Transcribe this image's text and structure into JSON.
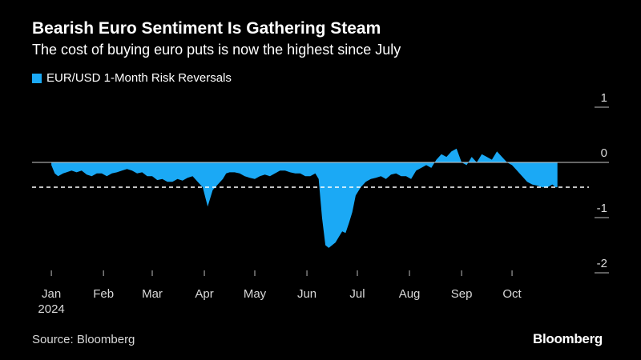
{
  "header": {
    "title": "Bearish Euro Sentiment Is Gathering Steam",
    "subtitle": "The cost of buying euro puts is now the highest since July"
  },
  "footer": {
    "source": "Source: Bloomberg",
    "brand": "Bloomberg"
  },
  "colors": {
    "background": "#000000",
    "series": "#1ba9f5",
    "zero_line": "#cccccc",
    "reference_line": "#ffffff"
  },
  "chart_data": {
    "type": "area",
    "title": "Bearish Euro Sentiment Is Gathering Steam",
    "subtitle": "The cost of buying euro puts is now the highest since July",
    "series_name": "EUR/USD 1-Month Risk Reversals",
    "legend_position": "top-left",
    "xlabel": "",
    "ylabel": "",
    "y_axis_side": "right",
    "ylim": [
      -2.2,
      1.2
    ],
    "yticks": [
      1,
      0,
      -1,
      -2
    ],
    "reference_line": -0.45,
    "x_range_days": [
      0,
      305
    ],
    "month_ticks": [
      {
        "label": "Jan",
        "day": 1
      },
      {
        "label": "Feb",
        "day": 32
      },
      {
        "label": "Mar",
        "day": 61
      },
      {
        "label": "Apr",
        "day": 92
      },
      {
        "label": "May",
        "day": 122
      },
      {
        "label": "Jun",
        "day": 153
      },
      {
        "label": "Jul",
        "day": 183
      },
      {
        "label": "Aug",
        "day": 214
      },
      {
        "label": "Sep",
        "day": 245
      },
      {
        "label": "Oct",
        "day": 275
      }
    ],
    "year_label": "2024",
    "x": [
      1,
      3,
      5,
      8,
      10,
      13,
      16,
      19,
      22,
      25,
      28,
      31,
      34,
      37,
      40,
      43,
      46,
      49,
      52,
      55,
      58,
      61,
      64,
      67,
      70,
      73,
      76,
      79,
      82,
      85,
      88,
      91,
      94,
      97,
      100,
      103,
      105,
      107,
      110,
      113,
      116,
      119,
      122,
      125,
      128,
      131,
      134,
      137,
      140,
      143,
      146,
      149,
      152,
      155,
      158,
      160,
      162,
      164,
      166,
      168,
      170,
      172,
      174,
      176,
      178,
      180,
      182,
      185,
      188,
      191,
      194,
      197,
      200,
      203,
      206,
      209,
      212,
      215,
      218,
      221,
      224,
      227,
      230,
      233,
      236,
      239,
      242,
      245,
      248,
      251,
      254,
      257,
      260,
      263,
      266,
      269,
      272,
      275,
      278,
      281,
      284,
      287,
      290,
      293,
      296,
      299,
      301,
      302
    ],
    "values": [
      -0.05,
      -0.2,
      -0.25,
      -0.2,
      -0.18,
      -0.15,
      -0.18,
      -0.15,
      -0.22,
      -0.25,
      -0.2,
      -0.2,
      -0.25,
      -0.2,
      -0.18,
      -0.15,
      -0.12,
      -0.15,
      -0.2,
      -0.18,
      -0.25,
      -0.25,
      -0.32,
      -0.3,
      -0.35,
      -0.35,
      -0.3,
      -0.33,
      -0.28,
      -0.25,
      -0.35,
      -0.45,
      -0.8,
      -0.5,
      -0.4,
      -0.3,
      -0.2,
      -0.18,
      -0.18,
      -0.2,
      -0.25,
      -0.28,
      -0.3,
      -0.25,
      -0.22,
      -0.25,
      -0.2,
      -0.15,
      -0.15,
      -0.18,
      -0.2,
      -0.2,
      -0.25,
      -0.25,
      -0.2,
      -0.3,
      -1.0,
      -1.5,
      -1.55,
      -1.5,
      -1.45,
      -1.35,
      -1.25,
      -1.28,
      -1.1,
      -0.9,
      -0.6,
      -0.45,
      -0.35,
      -0.3,
      -0.28,
      -0.25,
      -0.3,
      -0.22,
      -0.2,
      -0.25,
      -0.25,
      -0.3,
      -0.15,
      -0.1,
      -0.05,
      -0.1,
      0.05,
      0.15,
      0.1,
      0.2,
      0.25,
      0.0,
      -0.05,
      0.1,
      0.0,
      0.15,
      0.1,
      0.05,
      0.2,
      0.1,
      0.0,
      -0.05,
      -0.15,
      -0.25,
      -0.35,
      -0.4,
      -0.42,
      -0.45,
      -0.45,
      -0.4,
      -0.45,
      -0.45
    ]
  }
}
